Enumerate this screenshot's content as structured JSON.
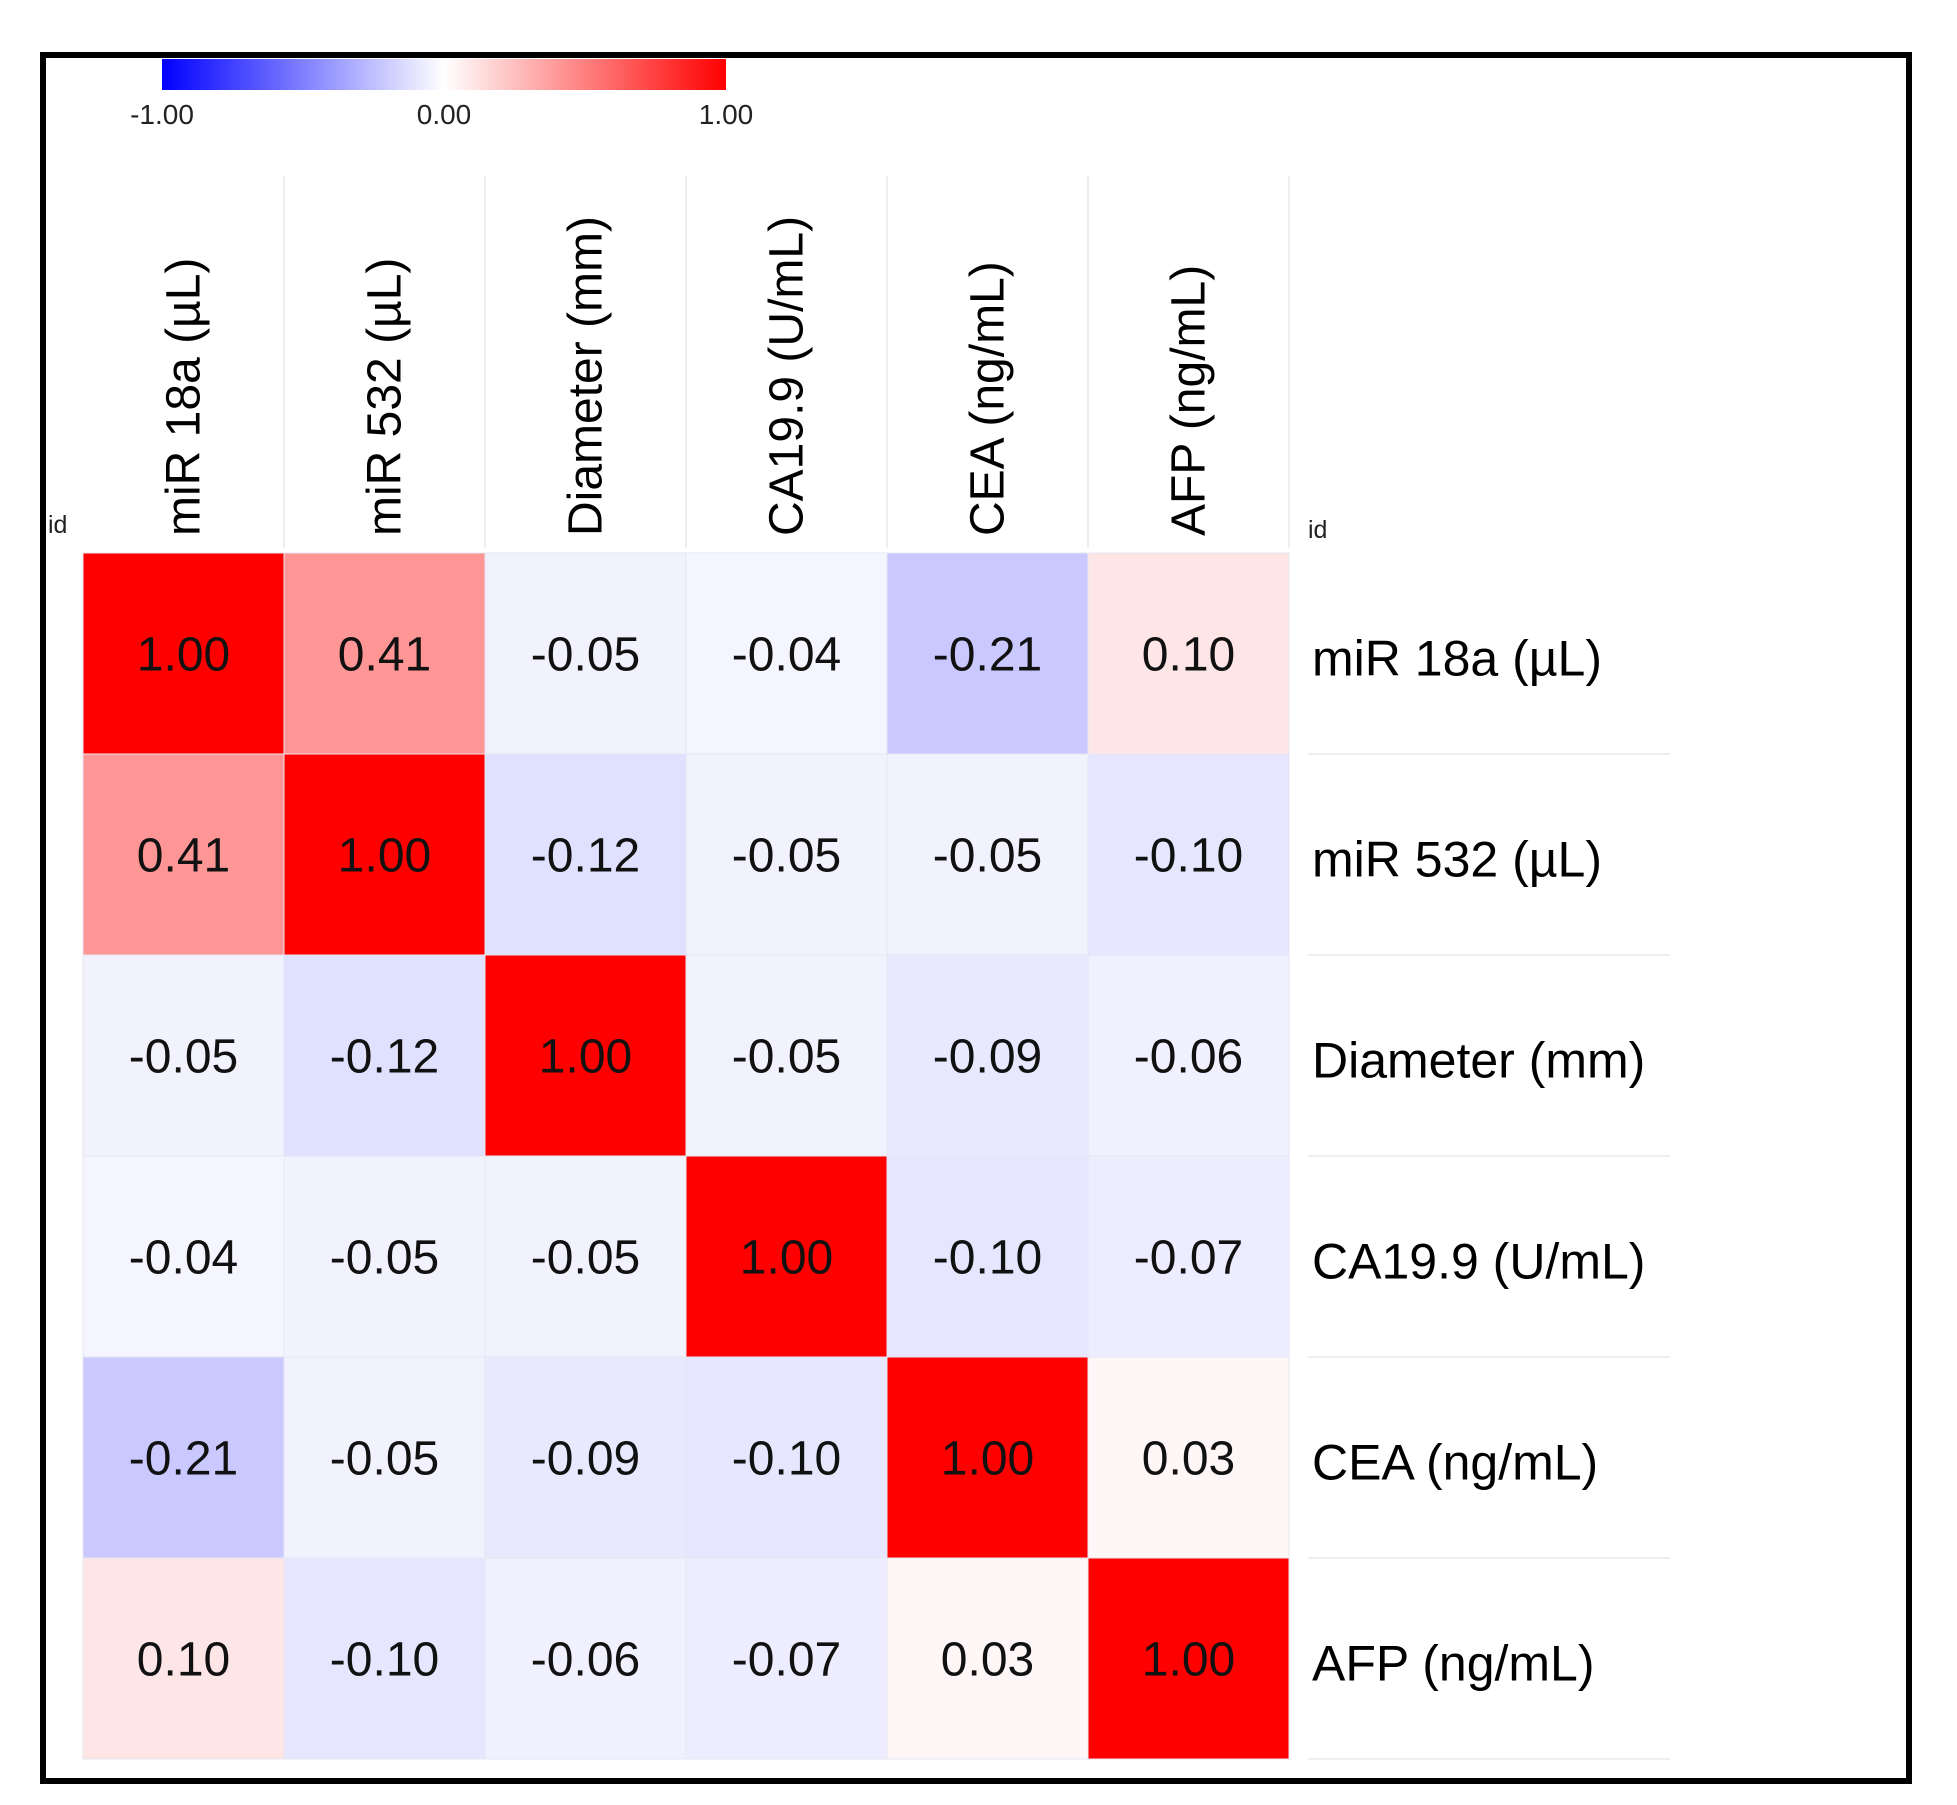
{
  "chart_data": {
    "type": "heatmap",
    "title": "",
    "corner_label_left": "id",
    "corner_label_right": "id",
    "variables": [
      "miR 18a (µL)",
      "miR 532 (µL)",
      "Diameter (mm)",
      "CA19.9 (U/mL)",
      "CEA (ng/mL)",
      "AFP (ng/mL)"
    ],
    "matrix": [
      [
        1.0,
        0.41,
        -0.05,
        -0.04,
        -0.21,
        0.1
      ],
      [
        0.41,
        1.0,
        -0.12,
        -0.05,
        -0.05,
        -0.1
      ],
      [
        -0.05,
        -0.12,
        1.0,
        -0.05,
        -0.09,
        -0.06
      ],
      [
        -0.04,
        -0.05,
        -0.05,
        1.0,
        -0.1,
        -0.07
      ],
      [
        -0.21,
        -0.05,
        -0.09,
        -0.1,
        1.0,
        0.03
      ],
      [
        0.1,
        -0.1,
        -0.06,
        -0.07,
        0.03,
        1.0
      ]
    ],
    "value_labels": [
      [
        "1.00",
        "0.41",
        "-0.05",
        "-0.04",
        "-0.21",
        "0.10"
      ],
      [
        "0.41",
        "1.00",
        "-0.12",
        "-0.05",
        "-0.05",
        "-0.10"
      ],
      [
        "-0.05",
        "-0.12",
        "1.00",
        "-0.05",
        "-0.09",
        "-0.06"
      ],
      [
        "-0.04",
        "-0.05",
        "-0.05",
        "1.00",
        "-0.10",
        "-0.07"
      ],
      [
        "-0.21",
        "-0.05",
        "-0.09",
        "-0.10",
        "1.00",
        "0.03"
      ],
      [
        "0.10",
        "-0.10",
        "-0.06",
        "-0.07",
        "0.03",
        "1.00"
      ]
    ],
    "color_scale": {
      "min": -1.0,
      "mid": 0.0,
      "max": 1.0,
      "min_color": "#0000ff",
      "mid_color": "#ffffff",
      "max_color": "#ff0000",
      "tick_labels": [
        "-1.00",
        "0.00",
        "1.00"
      ]
    },
    "legend_position": "top-left"
  }
}
